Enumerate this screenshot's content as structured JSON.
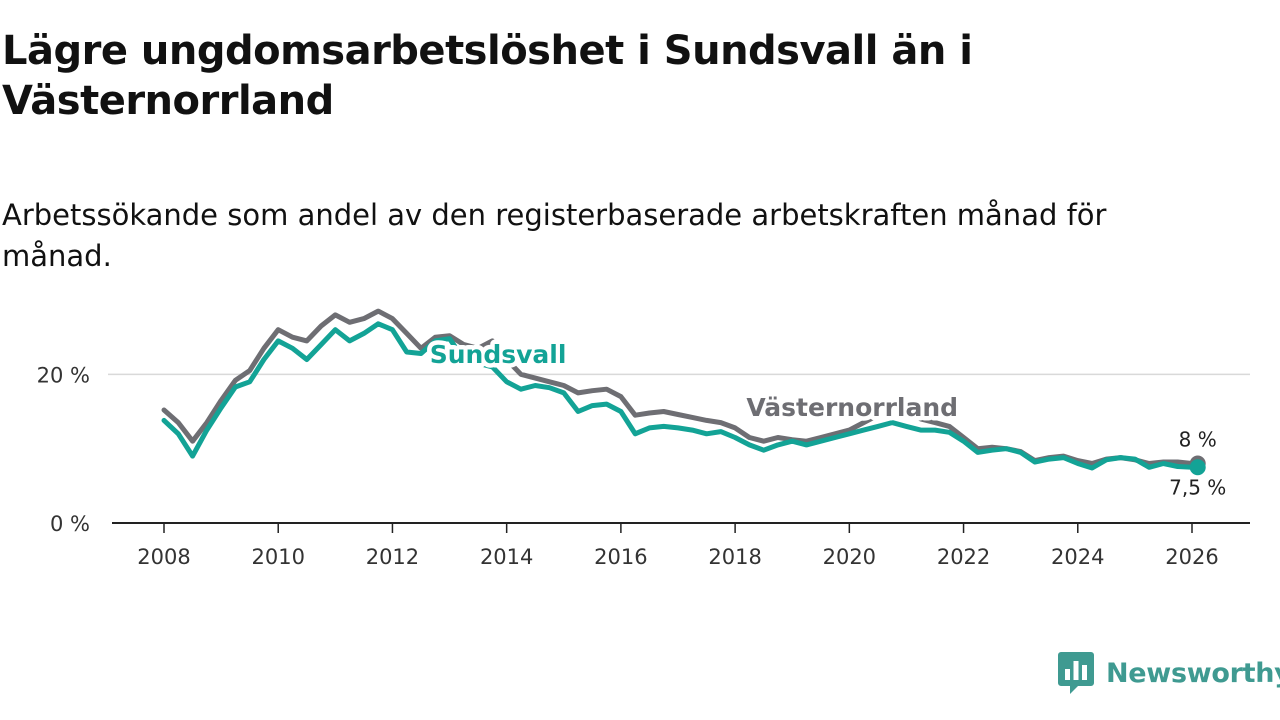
{
  "header": {
    "title": "Lägre ungdomsarbetslöshet i Sundsvall än i Västernorrland",
    "subtitle": "Arbetssökande som andel av den registerbaserade arbetskraften månad för månad."
  },
  "branding": {
    "name": "Newsworthy",
    "icon": "newsworthy-logo-icon",
    "color": "#3f9a91"
  },
  "chart_data": {
    "type": "line",
    "title": "Lägre ungdomsarbetslöshet i Sundsvall än i Västernorrland",
    "subtitle": "Arbetssökande som andel av den registerbaserade arbetskraften månad för månad.",
    "xlabel": "",
    "ylabel": "",
    "xlim": [
      2007.6,
      2026.9
    ],
    "ylim": [
      0,
      30
    ],
    "x_ticks": [
      2008,
      2010,
      2012,
      2014,
      2016,
      2018,
      2020,
      2022,
      2024,
      2026
    ],
    "x_tick_labels": [
      "2008",
      "2010",
      "2012",
      "2014",
      "2016",
      "2018",
      "2020",
      "2022",
      "2024",
      "2026"
    ],
    "y_ticks": [
      0,
      20
    ],
    "y_tick_labels": [
      "0 %",
      "20 %"
    ],
    "grid": true,
    "series": [
      {
        "name": "Västernorrland",
        "color": "#6e6e73",
        "label": "Västernorrland",
        "end_label": "8 %",
        "x": [
          2008.0,
          2008.25,
          2008.5,
          2008.75,
          2009.0,
          2009.25,
          2009.5,
          2009.75,
          2010.0,
          2010.25,
          2010.5,
          2010.75,
          2011.0,
          2011.25,
          2011.5,
          2011.75,
          2012.0,
          2012.25,
          2012.5,
          2012.75,
          2013.0,
          2013.25,
          2013.5,
          2013.75,
          2014.0,
          2014.25,
          2014.5,
          2014.75,
          2015.0,
          2015.25,
          2015.5,
          2015.75,
          2016.0,
          2016.25,
          2016.5,
          2016.75,
          2017.0,
          2017.25,
          2017.5,
          2017.75,
          2018.0,
          2018.25,
          2018.5,
          2018.75,
          2019.0,
          2019.25,
          2019.5,
          2019.75,
          2020.0,
          2020.25,
          2020.5,
          2020.75,
          2021.0,
          2021.25,
          2021.5,
          2021.75,
          2022.0,
          2022.25,
          2022.5,
          2022.75,
          2023.0,
          2023.25,
          2023.5,
          2023.75,
          2024.0,
          2024.25,
          2024.5,
          2024.75,
          2025.0,
          2025.25,
          2025.5,
          2025.75,
          2026.0,
          2026.1
        ],
        "values": [
          15.2,
          13.5,
          11.0,
          13.5,
          16.5,
          19.2,
          20.5,
          23.5,
          26.0,
          25.0,
          24.5,
          26.5,
          28.0,
          27.0,
          27.5,
          28.5,
          27.5,
          25.5,
          23.5,
          25.0,
          25.2,
          24.0,
          23.5,
          24.5,
          22.0,
          20.0,
          19.5,
          19.0,
          18.5,
          17.5,
          17.8,
          18.0,
          17.0,
          14.5,
          14.8,
          15.0,
          14.6,
          14.2,
          13.8,
          13.5,
          12.8,
          11.5,
          11.0,
          11.5,
          11.2,
          11.0,
          11.5,
          12.0,
          12.5,
          13.5,
          14.5,
          15.5,
          15.0,
          14.0,
          13.5,
          13.0,
          11.5,
          10.0,
          10.2,
          10.0,
          9.6,
          8.4,
          8.8,
          9.0,
          8.4,
          8.0,
          8.6,
          8.8,
          8.5,
          8.0,
          8.2,
          8.2,
          8.0,
          8.0
        ]
      },
      {
        "name": "Sundsvall",
        "color": "#13a396",
        "label": "Sundsvall",
        "end_label": "7,5 %",
        "x": [
          2008.0,
          2008.25,
          2008.5,
          2008.75,
          2009.0,
          2009.25,
          2009.5,
          2009.75,
          2010.0,
          2010.25,
          2010.5,
          2010.75,
          2011.0,
          2011.25,
          2011.5,
          2011.75,
          2012.0,
          2012.25,
          2012.5,
          2012.75,
          2013.0,
          2013.25,
          2013.5,
          2013.75,
          2014.0,
          2014.25,
          2014.5,
          2014.75,
          2015.0,
          2015.25,
          2015.5,
          2015.75,
          2016.0,
          2016.25,
          2016.5,
          2016.75,
          2017.0,
          2017.25,
          2017.5,
          2017.75,
          2018.0,
          2018.25,
          2018.5,
          2018.75,
          2019.0,
          2019.25,
          2019.5,
          2019.75,
          2020.0,
          2020.25,
          2020.5,
          2020.75,
          2021.0,
          2021.25,
          2021.5,
          2021.75,
          2022.0,
          2022.25,
          2022.5,
          2022.75,
          2023.0,
          2023.25,
          2023.5,
          2023.75,
          2024.0,
          2024.25,
          2024.5,
          2024.75,
          2025.0,
          2025.25,
          2025.5,
          2025.75,
          2026.0,
          2026.1
        ],
        "values": [
          13.8,
          12.0,
          9.0,
          12.5,
          15.5,
          18.3,
          19.0,
          22.0,
          24.5,
          23.5,
          22.0,
          24.0,
          26.0,
          24.5,
          25.5,
          26.8,
          26.0,
          23.0,
          22.8,
          24.5,
          24.8,
          22.0,
          21.5,
          21.0,
          19.0,
          18.0,
          18.5,
          18.2,
          17.5,
          15.0,
          15.8,
          16.0,
          15.0,
          12.0,
          12.8,
          13.0,
          12.8,
          12.5,
          12.0,
          12.3,
          11.5,
          10.5,
          9.8,
          10.5,
          11.0,
          10.5,
          11.0,
          11.5,
          12.0,
          12.5,
          13.0,
          13.5,
          13.0,
          12.5,
          12.5,
          12.2,
          11.0,
          9.5,
          9.8,
          10.0,
          9.5,
          8.2,
          8.6,
          8.8,
          8.0,
          7.4,
          8.5,
          8.8,
          8.6,
          7.5,
          8.0,
          7.6,
          7.5,
          7.5
        ]
      }
    ]
  }
}
